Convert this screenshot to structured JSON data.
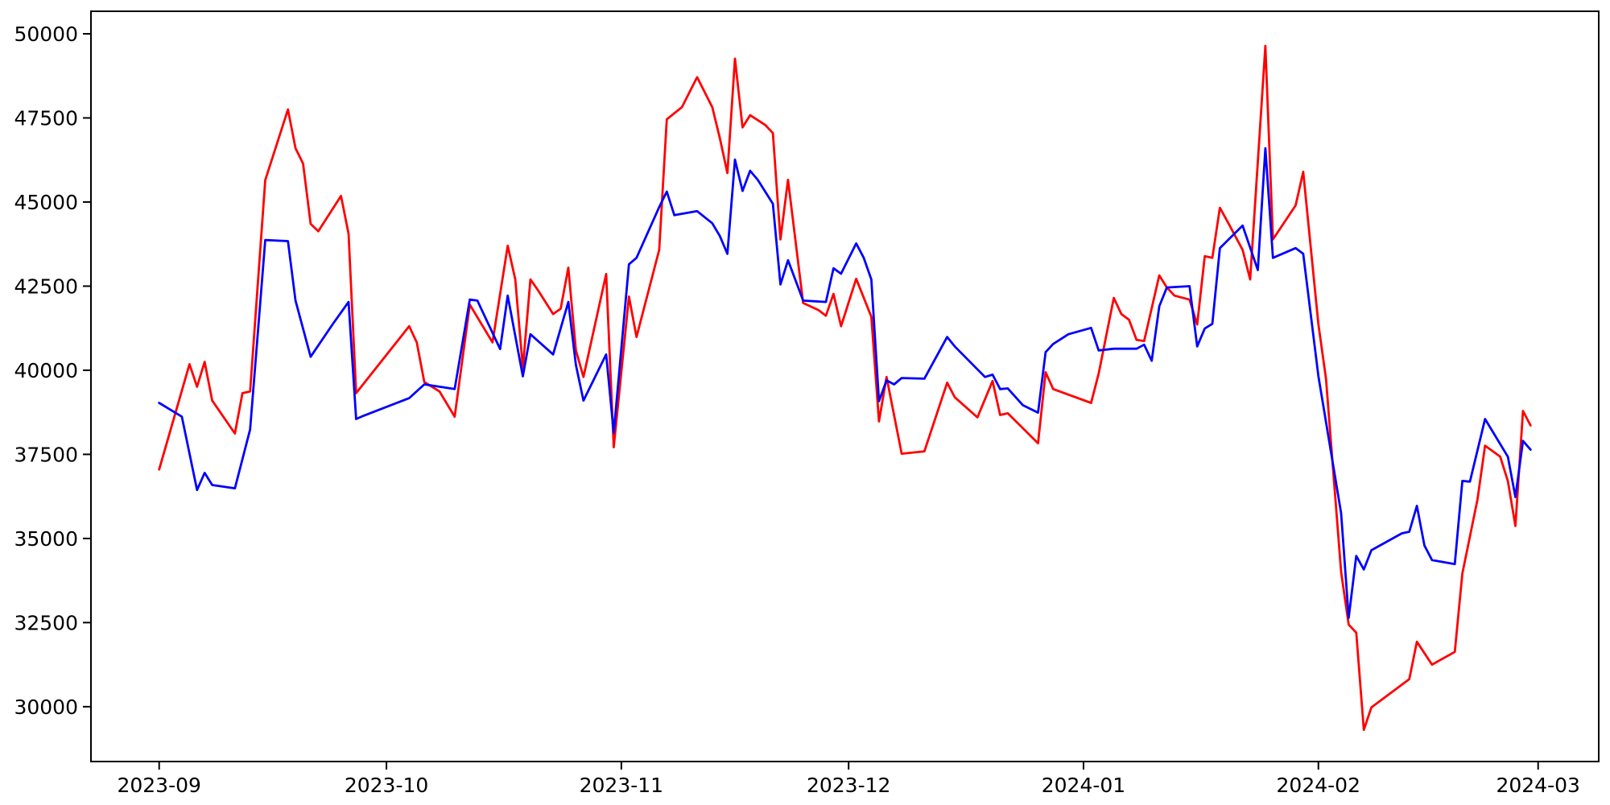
{
  "chart_data": {
    "type": "line",
    "title": "",
    "xlabel": "",
    "ylabel": "",
    "grid": false,
    "legend": "none",
    "background_color": "#ffffff",
    "axis_color": "#000000",
    "xlim": [
      "2023-08-23",
      "2024-03-09"
    ],
    "ylim": [
      28370,
      50670
    ],
    "y_ticks": [
      30000,
      32500,
      35000,
      37500,
      40000,
      42500,
      45000,
      47500,
      50000
    ],
    "y_tick_labels": [
      "30000",
      "32500",
      "35000",
      "37500",
      "40000",
      "42500",
      "45000",
      "47500",
      "50000"
    ],
    "x_ticks": [
      {
        "date": "2023-09-01",
        "label": "2023-09"
      },
      {
        "date": "2023-10-01",
        "label": "2023-10"
      },
      {
        "date": "2023-11-01",
        "label": "2023-11"
      },
      {
        "date": "2023-12-01",
        "label": "2023-12"
      },
      {
        "date": "2024-01-01",
        "label": "2024-01"
      },
      {
        "date": "2024-02-01",
        "label": "2024-02"
      },
      {
        "date": "2024-03-01",
        "label": "2024-03"
      }
    ],
    "series": [
      {
        "name": "red-series",
        "color": "#ff0000",
        "points": [
          [
            "2023-09-01",
            37050
          ],
          [
            "2023-09-05",
            40180
          ],
          [
            "2023-09-06",
            39510
          ],
          [
            "2023-09-07",
            40250
          ],
          [
            "2023-09-08",
            39100
          ],
          [
            "2023-09-11",
            38120
          ],
          [
            "2023-09-12",
            39320
          ],
          [
            "2023-09-13",
            39370
          ],
          [
            "2023-09-15",
            45650
          ],
          [
            "2023-09-18",
            47750
          ],
          [
            "2023-09-19",
            46600
          ],
          [
            "2023-09-20",
            46140
          ],
          [
            "2023-09-21",
            44350
          ],
          [
            "2023-09-22",
            44130
          ],
          [
            "2023-09-25",
            45180
          ],
          [
            "2023-09-26",
            44060
          ],
          [
            "2023-09-27",
            39320
          ],
          [
            "2023-10-04",
            41310
          ],
          [
            "2023-10-05",
            40830
          ],
          [
            "2023-10-06",
            39650
          ],
          [
            "2023-10-08",
            39370
          ],
          [
            "2023-10-10",
            38620
          ],
          [
            "2023-10-12",
            41950
          ],
          [
            "2023-10-15",
            40830
          ],
          [
            "2023-10-17",
            43700
          ],
          [
            "2023-10-18",
            42700
          ],
          [
            "2023-10-19",
            40060
          ],
          [
            "2023-10-20",
            42700
          ],
          [
            "2023-10-21",
            42380
          ],
          [
            "2023-10-23",
            41670
          ],
          [
            "2023-10-24",
            41830
          ],
          [
            "2023-10-25",
            43050
          ],
          [
            "2023-10-26",
            40590
          ],
          [
            "2023-10-27",
            39800
          ],
          [
            "2023-10-30",
            42860
          ],
          [
            "2023-10-31",
            37710
          ],
          [
            "2023-11-02",
            42190
          ],
          [
            "2023-11-03",
            40990
          ],
          [
            "2023-11-06",
            43580
          ],
          [
            "2023-11-07",
            47460
          ],
          [
            "2023-11-09",
            47820
          ],
          [
            "2023-11-11",
            48710
          ],
          [
            "2023-11-13",
            47820
          ],
          [
            "2023-11-14",
            46900
          ],
          [
            "2023-11-15",
            45860
          ],
          [
            "2023-11-16",
            49260
          ],
          [
            "2023-11-17",
            47220
          ],
          [
            "2023-11-18",
            47580
          ],
          [
            "2023-11-20",
            47290
          ],
          [
            "2023-11-21",
            47050
          ],
          [
            "2023-11-22",
            43890
          ],
          [
            "2023-11-23",
            45660
          ],
          [
            "2023-11-25",
            42000
          ],
          [
            "2023-11-27",
            41790
          ],
          [
            "2023-11-28",
            41620
          ],
          [
            "2023-11-29",
            42270
          ],
          [
            "2023-11-30",
            41310
          ],
          [
            "2023-12-02",
            42720
          ],
          [
            "2023-12-04",
            41590
          ],
          [
            "2023-12-05",
            38480
          ],
          [
            "2023-12-06",
            39800
          ],
          [
            "2023-12-08",
            37520
          ],
          [
            "2023-12-11",
            37590
          ],
          [
            "2023-12-14",
            39630
          ],
          [
            "2023-12-15",
            39200
          ],
          [
            "2023-12-18",
            38600
          ],
          [
            "2023-12-20",
            39680
          ],
          [
            "2023-12-21",
            38670
          ],
          [
            "2023-12-22",
            38720
          ],
          [
            "2023-12-26",
            37830
          ],
          [
            "2023-12-27",
            39940
          ],
          [
            "2023-12-28",
            39440
          ],
          [
            "2024-01-02",
            39030
          ],
          [
            "2024-01-03",
            39900
          ],
          [
            "2024-01-05",
            42150
          ],
          [
            "2024-01-06",
            41670
          ],
          [
            "2024-01-07",
            41500
          ],
          [
            "2024-01-08",
            40900
          ],
          [
            "2024-01-09",
            40870
          ],
          [
            "2024-01-11",
            42820
          ],
          [
            "2024-01-12",
            42460
          ],
          [
            "2024-01-13",
            42220
          ],
          [
            "2024-01-15",
            42100
          ],
          [
            "2024-01-16",
            41360
          ],
          [
            "2024-01-17",
            43390
          ],
          [
            "2024-01-18",
            43340
          ],
          [
            "2024-01-19",
            44830
          ],
          [
            "2024-01-20",
            44420
          ],
          [
            "2024-01-22",
            43580
          ],
          [
            "2024-01-23",
            42700
          ],
          [
            "2024-01-25",
            49640
          ],
          [
            "2024-01-26",
            43890
          ],
          [
            "2024-01-29",
            44900
          ],
          [
            "2024-01-30",
            45900
          ],
          [
            "2024-02-01",
            41360
          ],
          [
            "2024-02-02",
            39750
          ],
          [
            "2024-02-04",
            34000
          ],
          [
            "2024-02-05",
            32440
          ],
          [
            "2024-02-06",
            32200
          ],
          [
            "2024-02-07",
            29310
          ],
          [
            "2024-02-08",
            29980
          ],
          [
            "2024-02-13",
            30820
          ],
          [
            "2024-02-14",
            31930
          ],
          [
            "2024-02-16",
            31250
          ],
          [
            "2024-02-19",
            31630
          ],
          [
            "2024-02-20",
            33960
          ],
          [
            "2024-02-22",
            36160
          ],
          [
            "2024-02-23",
            37760
          ],
          [
            "2024-02-25",
            37430
          ],
          [
            "2024-02-26",
            36710
          ],
          [
            "2024-02-27",
            35370
          ],
          [
            "2024-02-28",
            38790
          ],
          [
            "2024-02-29",
            38360
          ]
        ]
      },
      {
        "name": "blue-series",
        "color": "#0000ff",
        "points": [
          [
            "2023-09-01",
            39030
          ],
          [
            "2023-09-04",
            38620
          ],
          [
            "2023-09-06",
            36440
          ],
          [
            "2023-09-07",
            36950
          ],
          [
            "2023-09-08",
            36590
          ],
          [
            "2023-09-11",
            36490
          ],
          [
            "2023-09-13",
            38240
          ],
          [
            "2023-09-15",
            43870
          ],
          [
            "2023-09-18",
            43840
          ],
          [
            "2023-09-19",
            42070
          ],
          [
            "2023-09-21",
            40400
          ],
          [
            "2023-09-24",
            41400
          ],
          [
            "2023-09-26",
            42030
          ],
          [
            "2023-09-27",
            38550
          ],
          [
            "2023-09-28",
            38650
          ],
          [
            "2023-10-04",
            39170
          ],
          [
            "2023-10-06",
            39580
          ],
          [
            "2023-10-10",
            39440
          ],
          [
            "2023-10-12",
            42100
          ],
          [
            "2023-10-13",
            42070
          ],
          [
            "2023-10-16",
            40630
          ],
          [
            "2023-10-17",
            42220
          ],
          [
            "2023-10-19",
            39820
          ],
          [
            "2023-10-20",
            41070
          ],
          [
            "2023-10-21",
            40870
          ],
          [
            "2023-10-23",
            40470
          ],
          [
            "2023-10-25",
            42030
          ],
          [
            "2023-10-26",
            40160
          ],
          [
            "2023-10-27",
            39100
          ],
          [
            "2023-10-30",
            40470
          ],
          [
            "2023-10-31",
            38140
          ],
          [
            "2023-11-02",
            43150
          ],
          [
            "2023-11-03",
            43340
          ],
          [
            "2023-11-06",
            44850
          ],
          [
            "2023-11-07",
            45310
          ],
          [
            "2023-11-08",
            44610
          ],
          [
            "2023-11-11",
            44730
          ],
          [
            "2023-11-13",
            44370
          ],
          [
            "2023-11-14",
            43990
          ],
          [
            "2023-11-15",
            43460
          ],
          [
            "2023-11-16",
            46260
          ],
          [
            "2023-11-17",
            45330
          ],
          [
            "2023-11-18",
            45930
          ],
          [
            "2023-11-19",
            45660
          ],
          [
            "2023-11-21",
            44950
          ],
          [
            "2023-11-22",
            42550
          ],
          [
            "2023-11-23",
            43270
          ],
          [
            "2023-11-25",
            42070
          ],
          [
            "2023-11-28",
            42030
          ],
          [
            "2023-11-29",
            43030
          ],
          [
            "2023-11-30",
            42870
          ],
          [
            "2023-12-02",
            43770
          ],
          [
            "2023-12-03",
            43340
          ],
          [
            "2023-12-04",
            42700
          ],
          [
            "2023-12-05",
            39080
          ],
          [
            "2023-12-06",
            39700
          ],
          [
            "2023-12-07",
            39580
          ],
          [
            "2023-12-08",
            39770
          ],
          [
            "2023-12-11",
            39750
          ],
          [
            "2023-12-14",
            40990
          ],
          [
            "2023-12-15",
            40710
          ],
          [
            "2023-12-19",
            39800
          ],
          [
            "2023-12-20",
            39870
          ],
          [
            "2023-12-21",
            39440
          ],
          [
            "2023-12-22",
            39460
          ],
          [
            "2023-12-24",
            38960
          ],
          [
            "2023-12-26",
            38740
          ],
          [
            "2023-12-27",
            40540
          ],
          [
            "2023-12-28",
            40780
          ],
          [
            "2023-12-30",
            41070
          ],
          [
            "2024-01-02",
            41260
          ],
          [
            "2024-01-03",
            40590
          ],
          [
            "2024-01-05",
            40640
          ],
          [
            "2024-01-08",
            40640
          ],
          [
            "2024-01-09",
            40760
          ],
          [
            "2024-01-10",
            40280
          ],
          [
            "2024-01-11",
            41900
          ],
          [
            "2024-01-12",
            42460
          ],
          [
            "2024-01-15",
            42500
          ],
          [
            "2024-01-16",
            40710
          ],
          [
            "2024-01-17",
            41240
          ],
          [
            "2024-01-18",
            41380
          ],
          [
            "2024-01-19",
            43630
          ],
          [
            "2024-01-22",
            44300
          ],
          [
            "2024-01-24",
            42980
          ],
          [
            "2024-01-25",
            46600
          ],
          [
            "2024-01-26",
            43340
          ],
          [
            "2024-01-29",
            43630
          ],
          [
            "2024-01-30",
            43460
          ],
          [
            "2024-02-01",
            39820
          ],
          [
            "2024-02-04",
            35750
          ],
          [
            "2024-02-05",
            32640
          ],
          [
            "2024-02-06",
            34480
          ],
          [
            "2024-02-07",
            34080
          ],
          [
            "2024-02-08",
            34650
          ],
          [
            "2024-02-12",
            35150
          ],
          [
            "2024-02-13",
            35200
          ],
          [
            "2024-02-14",
            35970
          ],
          [
            "2024-02-15",
            34790
          ],
          [
            "2024-02-16",
            34360
          ],
          [
            "2024-02-19",
            34240
          ],
          [
            "2024-02-20",
            36710
          ],
          [
            "2024-02-21",
            36690
          ],
          [
            "2024-02-23",
            38550
          ],
          [
            "2024-02-26",
            37430
          ],
          [
            "2024-02-27",
            36230
          ],
          [
            "2024-02-28",
            37900
          ],
          [
            "2024-02-29",
            37640
          ]
        ]
      }
    ]
  }
}
